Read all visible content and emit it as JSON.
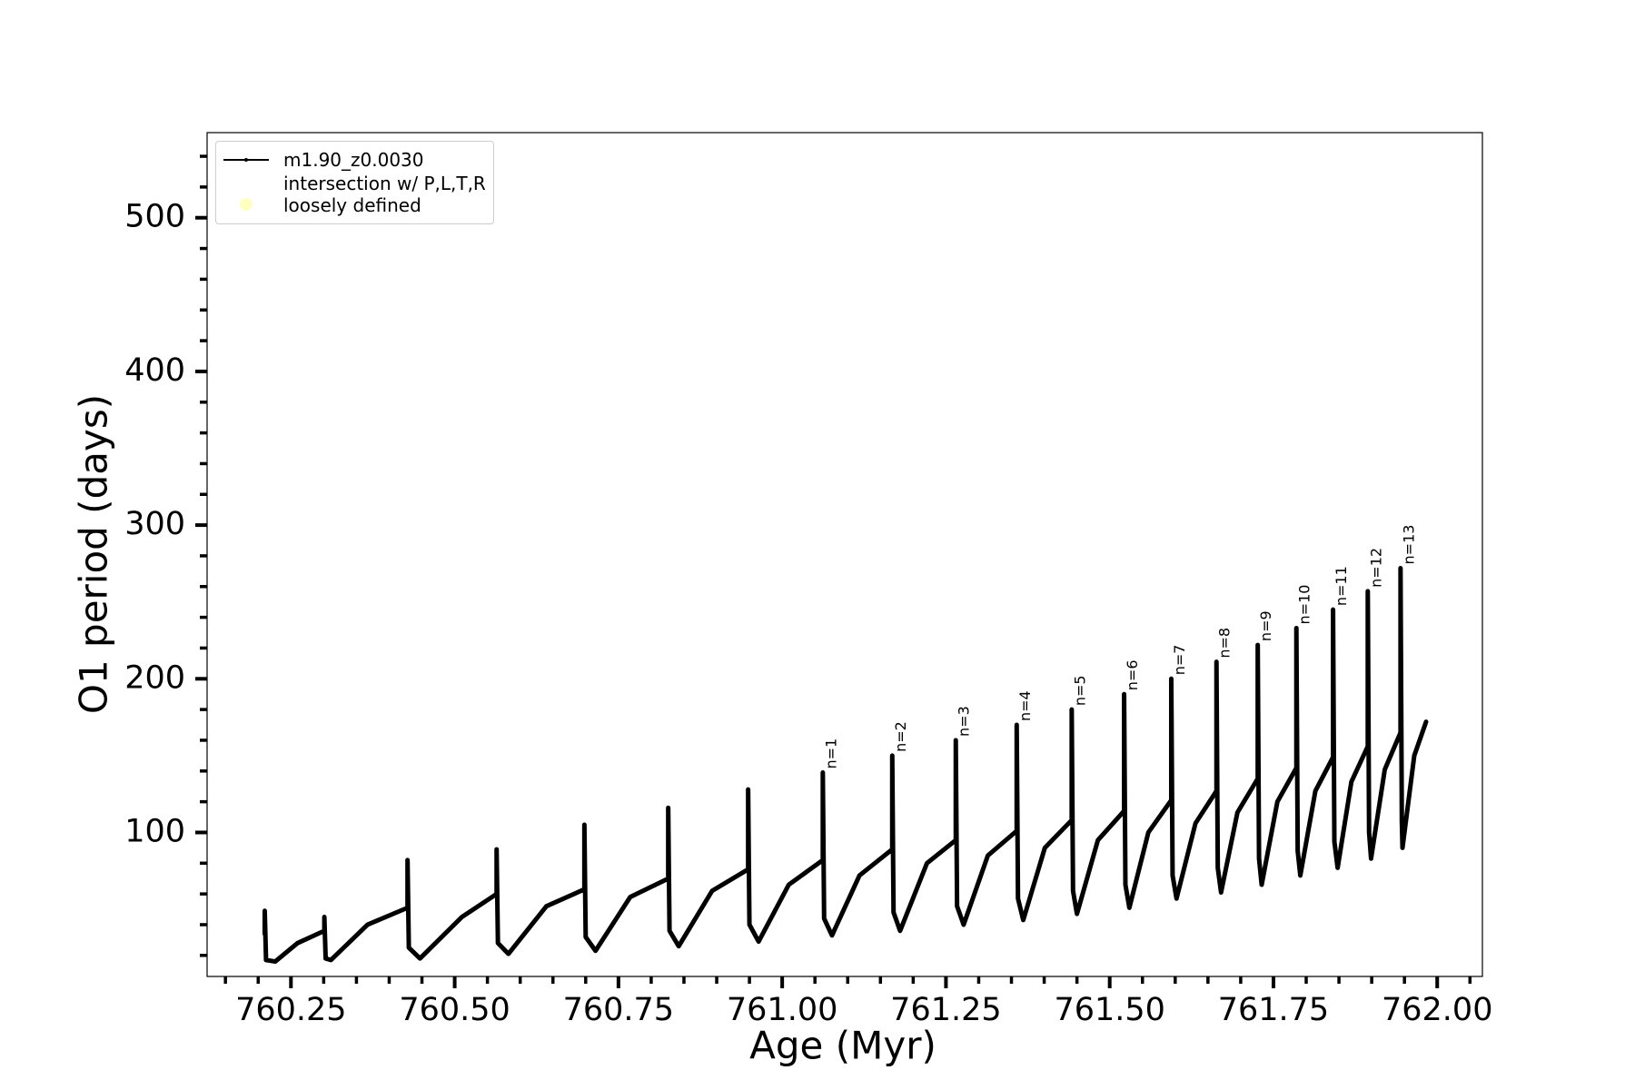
{
  "chart_data": {
    "type": "line",
    "xlabel": "Age (Myr)",
    "ylabel": "O1 period (days)",
    "x": [
      760.21,
      760.21,
      760.212,
      760.226,
      760.26,
      760.301,
      760.301,
      760.303,
      760.311,
      760.367,
      760.428,
      760.428,
      760.43,
      760.447,
      760.511,
      760.564,
      760.564,
      760.566,
      760.582,
      760.64,
      760.698,
      760.698,
      760.7,
      760.715,
      760.768,
      760.826,
      760.826,
      760.828,
      760.842,
      760.893,
      760.948,
      760.948,
      760.95,
      760.964,
      761.01,
      761.062,
      761.062,
      761.064,
      761.076,
      761.118,
      761.168,
      761.168,
      761.17,
      761.18,
      761.221,
      761.265,
      761.265,
      761.267,
      761.277,
      761.314,
      761.358,
      761.358,
      761.36,
      761.368,
      761.401,
      761.442,
      761.442,
      761.444,
      761.45,
      761.482,
      761.522,
      761.522,
      761.524,
      761.53,
      761.559,
      761.594,
      761.594,
      761.596,
      761.602,
      761.631,
      761.663,
      761.663,
      761.665,
      761.67,
      761.695,
      761.726,
      761.726,
      761.728,
      761.732,
      761.756,
      761.785,
      761.785,
      761.787,
      761.791,
      761.814,
      761.841,
      761.841,
      761.843,
      761.848,
      761.869,
      761.894,
      761.894,
      761.896,
      761.899,
      761.92,
      761.944,
      761.944,
      761.946,
      761.947,
      761.965,
      761.983
    ],
    "series": [
      {
        "name": "m1.90_z0.0030",
        "color": "#000000",
        "values": [
          34,
          49,
          17,
          16,
          28,
          36,
          45,
          18,
          17,
          40,
          51,
          82,
          25,
          18,
          45,
          60,
          89,
          28,
          21,
          52,
          63,
          105,
          32,
          23,
          58,
          70,
          116,
          36,
          26,
          62,
          76,
          128,
          40,
          29,
          66,
          82,
          139,
          44,
          33,
          72,
          89,
          150,
          48,
          36,
          80,
          95,
          160,
          52,
          40,
          85,
          101,
          170,
          57,
          43,
          90,
          108,
          180,
          62,
          47,
          95,
          114,
          190,
          66,
          51,
          100,
          121,
          200,
          72,
          57,
          106,
          127,
          211,
          77,
          61,
          113,
          135,
          222,
          83,
          66,
          120,
          142,
          233,
          88,
          72,
          127,
          149,
          245,
          94,
          77,
          133,
          156,
          257,
          100,
          83,
          141,
          165,
          272,
          107,
          90,
          150,
          172
        ]
      },
      {
        "name": "intersection w/ P,L,T,R\nloosely defined",
        "color": "#ffffb0"
      }
    ],
    "annotations": [
      {
        "text": "n=1",
        "x": 761.062,
        "y": 139
      },
      {
        "text": "n=2",
        "x": 761.168,
        "y": 150
      },
      {
        "text": "n=3",
        "x": 761.265,
        "y": 160
      },
      {
        "text": "n=4",
        "x": 761.358,
        "y": 170
      },
      {
        "text": "n=5",
        "x": 761.442,
        "y": 180
      },
      {
        "text": "n=6",
        "x": 761.522,
        "y": 190
      },
      {
        "text": "n=7",
        "x": 761.594,
        "y": 200
      },
      {
        "text": "n=8",
        "x": 761.663,
        "y": 211
      },
      {
        "text": "n=9",
        "x": 761.726,
        "y": 222
      },
      {
        "text": "n=10",
        "x": 761.785,
        "y": 233
      },
      {
        "text": "n=11",
        "x": 761.841,
        "y": 245
      },
      {
        "text": "n=12",
        "x": 761.894,
        "y": 257
      },
      {
        "text": "n=13",
        "x": 761.944,
        "y": 272
      }
    ],
    "xlim": [
      760.122,
      762.069
    ],
    "ylim": [
      6.3,
      555.4
    ],
    "xticks": [
      760.25,
      {
        "value": 760.5,
        "label": "760.50"
      },
      760.75,
      {
        "value": 761,
        "label": "761.00"
      },
      761.25,
      {
        "value": 761.5,
        "label": "761.50"
      },
      761.75,
      {
        "value": 762,
        "label": "762.00"
      }
    ],
    "xminorticks": [
      760.15,
      760.2,
      760.3,
      760.35,
      760.4,
      760.45,
      760.55,
      760.6,
      760.65,
      760.7,
      760.8,
      760.85,
      760.9,
      760.95,
      761.05,
      761.1,
      761.15,
      761.2,
      761.3,
      761.35,
      761.4,
      761.45,
      761.55,
      761.6,
      761.65,
      761.7,
      761.8,
      761.85,
      761.9,
      761.95,
      762.05
    ],
    "yticks": [
      100,
      200,
      300,
      400,
      500
    ],
    "yminorticks": [
      20,
      40,
      60,
      80,
      120,
      140,
      160,
      180,
      220,
      240,
      260,
      280,
      320,
      340,
      360,
      380,
      420,
      440,
      460,
      480,
      520,
      540
    ],
    "legend": "upper left",
    "grid": false
  }
}
